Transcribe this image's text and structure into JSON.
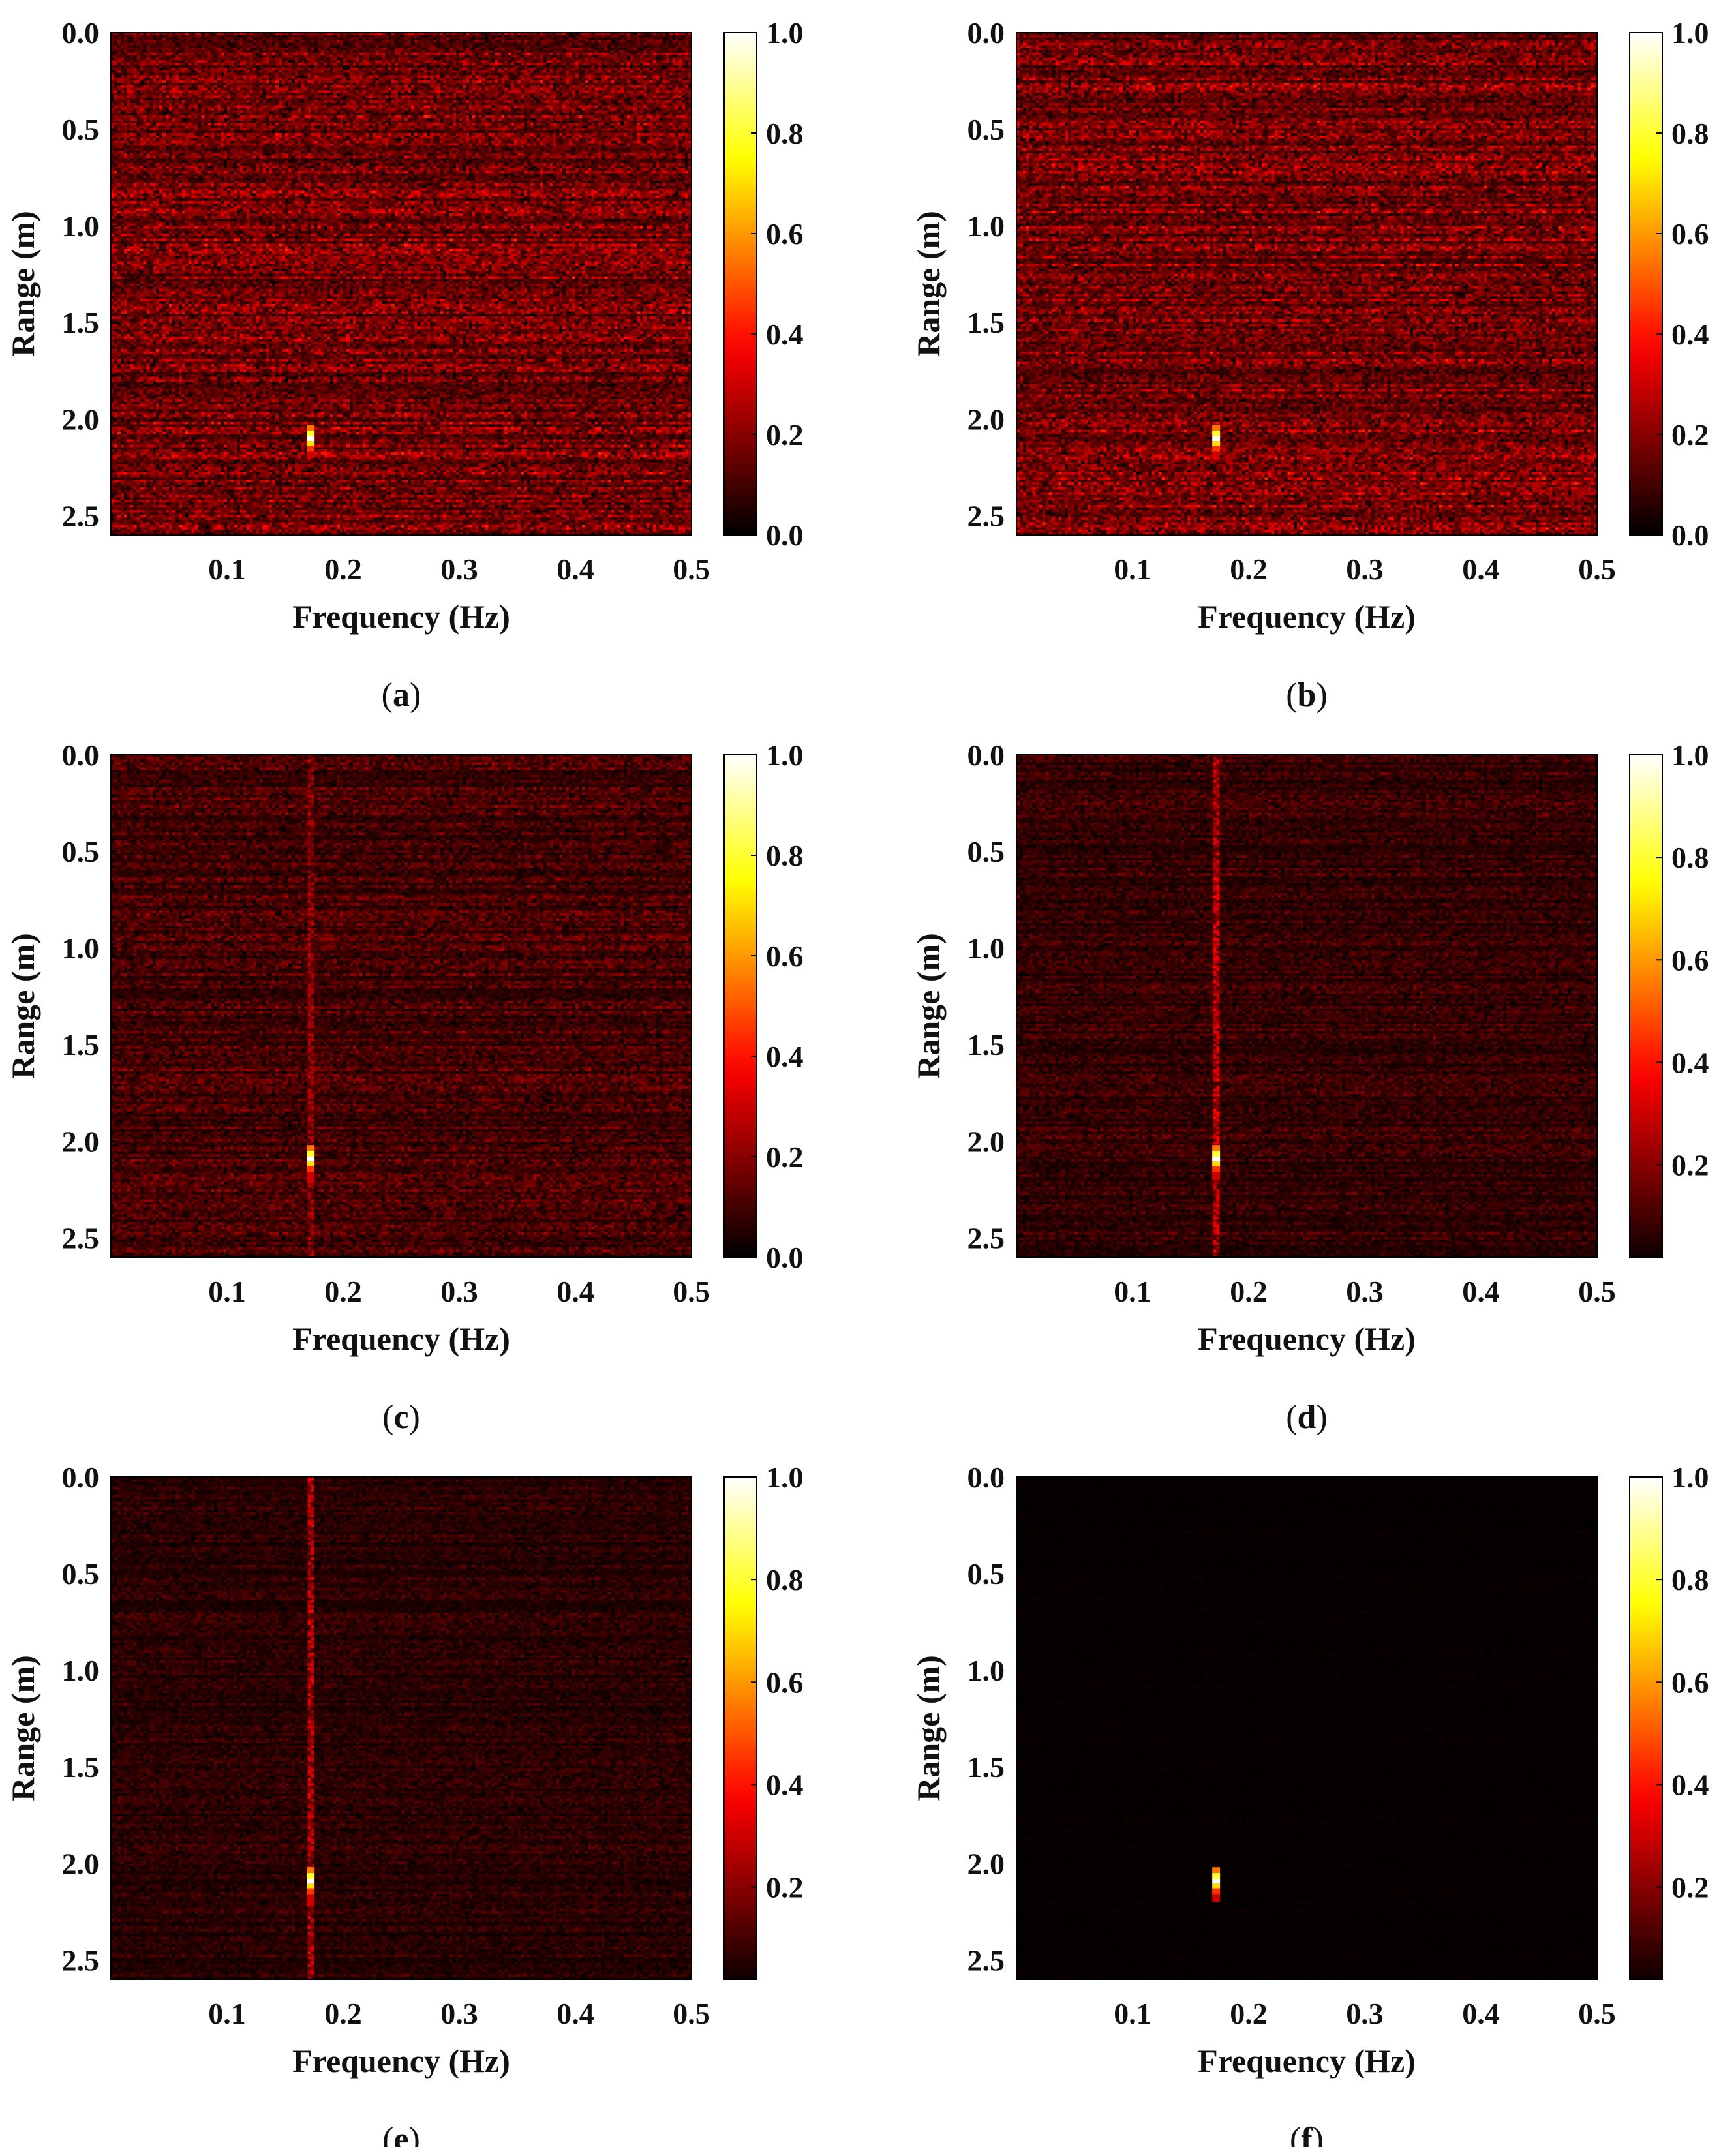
{
  "figure": {
    "panels": [
      "a",
      "b",
      "c",
      "d",
      "e",
      "f"
    ]
  },
  "colors": {
    "colormap": "hot",
    "colormap_stops": [
      "#000000",
      "#ff0000",
      "#ffff00",
      "#ffffff"
    ],
    "axis": "#000000",
    "background": "#ffffff"
  },
  "chart_data": [
    {
      "panel": "a",
      "type": "heatmap",
      "caption_label": "a",
      "xlabel": "Frequency (Hz)",
      "ylabel": "Range (m)",
      "xlim": [
        0.0,
        0.5
      ],
      "ylim": [
        2.6,
        0.0
      ],
      "xticks": [
        "0.1",
        "0.2",
        "0.3",
        "0.4",
        "0.5"
      ],
      "yticks": [
        "0.0",
        "0.5",
        "1.0",
        "1.5",
        "2.0",
        "2.5"
      ],
      "colorbar_ticks": [
        "0.0",
        "0.2",
        "0.4",
        "0.6",
        "0.8",
        "1.0"
      ],
      "clim": [
        0.0,
        1.0
      ],
      "background_level": 0.22,
      "column_level": 0.0,
      "peak": {
        "frequency": 0.172,
        "range_min": 2.03,
        "range_max": 2.2,
        "value": 1.0
      }
    },
    {
      "panel": "b",
      "type": "heatmap",
      "caption_label": "b",
      "xlabel": "Frequency (Hz)",
      "ylabel": "Range (m)",
      "xlim": [
        0.0,
        0.5
      ],
      "ylim": [
        2.6,
        0.0
      ],
      "xticks": [
        "0.1",
        "0.2",
        "0.3",
        "0.4",
        "0.5"
      ],
      "yticks": [
        "0.0",
        "0.5",
        "1.0",
        "1.5",
        "2.0",
        "2.5"
      ],
      "colorbar_ticks": [
        "0.0",
        "0.2",
        "0.4",
        "0.6",
        "0.8",
        "1.0"
      ],
      "clim": [
        0.0,
        1.0
      ],
      "background_level": 0.22,
      "column_level": 0.0,
      "peak": {
        "frequency": 0.172,
        "range_min": 2.03,
        "range_max": 2.2,
        "value": 1.0
      }
    },
    {
      "panel": "c",
      "type": "heatmap",
      "caption_label": "c",
      "xlabel": "Frequency (Hz)",
      "ylabel": "Range (m)",
      "xlim": [
        0.0,
        0.5
      ],
      "ylim": [
        2.6,
        0.0
      ],
      "xticks": [
        "0.1",
        "0.2",
        "0.3",
        "0.4",
        "0.5"
      ],
      "yticks": [
        "0.0",
        "0.5",
        "1.0",
        "1.5",
        "2.0",
        "2.5"
      ],
      "colorbar_ticks": [
        "0.0",
        "0.2",
        "0.4",
        "0.6",
        "0.8",
        "1.0"
      ],
      "clim": [
        0.0,
        1.0
      ],
      "background_level": 0.13,
      "column_level": 0.25,
      "peak": {
        "frequency": 0.172,
        "range_min": 2.02,
        "range_max": 2.22,
        "value": 1.0
      }
    },
    {
      "panel": "d",
      "type": "heatmap",
      "caption_label": "d",
      "xlabel": "Frequency (Hz)",
      "ylabel": "Range (m)",
      "xlim": [
        0.0,
        0.5
      ],
      "ylim": [
        2.6,
        0.0
      ],
      "xticks": [
        "0.1",
        "0.2",
        "0.3",
        "0.4",
        "0.5"
      ],
      "yticks": [
        "0.0",
        "0.5",
        "1.0",
        "1.5",
        "2.0",
        "2.5"
      ],
      "colorbar_ticks": [
        "0.2",
        "0.4",
        "0.6",
        "0.8",
        "1.0"
      ],
      "clim": [
        0.02,
        1.0
      ],
      "background_level": 0.1,
      "column_level": 0.32,
      "peak": {
        "frequency": 0.172,
        "range_min": 2.02,
        "range_max": 2.2,
        "value": 1.0
      }
    },
    {
      "panel": "e",
      "type": "heatmap",
      "caption_label": "e",
      "xlabel": "Frequency (Hz)",
      "ylabel": "Range (m)",
      "xlim": [
        0.0,
        0.5
      ],
      "ylim": [
        2.6,
        0.0
      ],
      "xticks": [
        "0.1",
        "0.2",
        "0.3",
        "0.4",
        "0.5"
      ],
      "yticks": [
        "0.0",
        "0.5",
        "1.0",
        "1.5",
        "2.0",
        "2.5"
      ],
      "colorbar_ticks": [
        "0.2",
        "0.4",
        "0.6",
        "0.8",
        "1.0"
      ],
      "clim": [
        0.02,
        1.0
      ],
      "background_level": 0.08,
      "column_level": 0.3,
      "peak": {
        "frequency": 0.172,
        "range_min": 2.02,
        "range_max": 2.22,
        "value": 1.0
      }
    },
    {
      "panel": "f",
      "type": "heatmap",
      "caption_label": "f",
      "xlabel": "Frequency (Hz)",
      "ylabel": "Range (m)",
      "xlim": [
        0.0,
        0.5
      ],
      "ylim": [
        2.6,
        0.0
      ],
      "xticks": [
        "0.1",
        "0.2",
        "0.3",
        "0.4",
        "0.5"
      ],
      "yticks": [
        "0.0",
        "0.5",
        "1.0",
        "1.5",
        "2.0",
        "2.5"
      ],
      "colorbar_ticks": [
        "0.2",
        "0.4",
        "0.6",
        "0.8",
        "1.0"
      ],
      "clim": [
        0.02,
        1.0
      ],
      "background_level": 0.012,
      "column_level": 0.0,
      "peak": {
        "frequency": 0.172,
        "range_min": 2.02,
        "range_max": 2.2,
        "value": 1.0
      }
    }
  ]
}
